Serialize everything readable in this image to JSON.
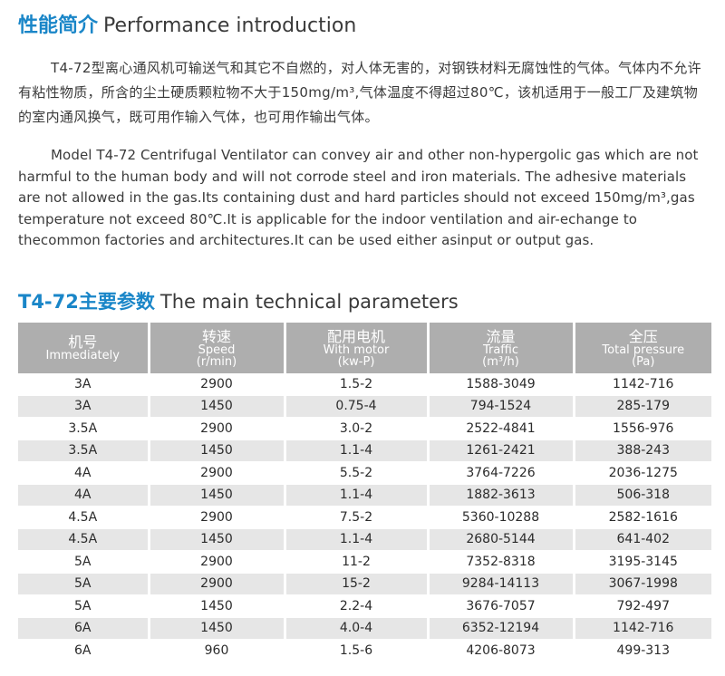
{
  "section1": {
    "title_cn": "性能简介",
    "title_en": "Performance introduction"
  },
  "intro_cn": "T4-72型离心通风机可输送气和其它不自燃的，对人体无害的，对钢铁材料无腐蚀性的气体。气体内不允许有粘性物质，所含的尘土硬质颗粒物不大于150mg/m³,气体温度不得超过80℃，该机适用于一般工厂及建筑物的室内通风换气，既可用作输入气体，也可用作输出气体。",
  "intro_en": "Model T4-72 Centrifugal Ventilator can convey air and other non-hypergolic gas which are not harmful to the human body and will not corrode steel and iron materials. The adhesive materials are not allowed in the gas.Its containing dust and hard particles should not exceed 150mg/m³,gas temperature not exceed 80℃.It is applicable for the indoor ventilation and air-echange to thecommon factories and architectures.It can be used either asinput or output gas.",
  "section2": {
    "title_cn": "T4-72主要参数",
    "title_en": "The main technical parameters"
  },
  "table": {
    "headers": [
      {
        "cn": "机号",
        "en1": "Immediately",
        "en2": ""
      },
      {
        "cn": "转速",
        "en1": "Speed",
        "en2": "(r/min)"
      },
      {
        "cn": "配用电机",
        "en1": "With motor",
        "en2": "(kw-P)"
      },
      {
        "cn": "流量",
        "en1": "Traffic",
        "en2": "(m³/h)"
      },
      {
        "cn": "全压",
        "en1": "Total pressure",
        "en2": "(Pa)"
      }
    ],
    "rows": [
      [
        "3A",
        "2900",
        "1.5-2",
        "1588-3049",
        "1142-716"
      ],
      [
        "3A",
        "1450",
        "0.75-4",
        "794-1524",
        "285-179"
      ],
      [
        "3.5A",
        "2900",
        "3.0-2",
        "2522-4841",
        "1556-976"
      ],
      [
        "3.5A",
        "1450",
        "1.1-4",
        "1261-2421",
        "388-243"
      ],
      [
        "4A",
        "2900",
        "5.5-2",
        "3764-7226",
        "2036-1275"
      ],
      [
        "4A",
        "1450",
        "1.1-4",
        "1882-3613",
        "506-318"
      ],
      [
        "4.5A",
        "2900",
        "7.5-2",
        "5360-10288",
        "2582-1616"
      ],
      [
        "4.5A",
        "1450",
        "1.1-4",
        "2680-5144",
        "641-402"
      ],
      [
        "5A",
        "2900",
        "11-2",
        "7352-8318",
        "3195-3145"
      ],
      [
        "5A",
        "2900",
        "15-2",
        "9284-14113",
        "3067-1998"
      ],
      [
        "5A",
        "1450",
        "2.2-4",
        "3676-7057",
        "792-497"
      ],
      [
        "6A",
        "1450",
        "4.0-4",
        "6352-12194",
        "1142-716"
      ],
      [
        "6A",
        "960",
        "1.5-6",
        "4206-8073",
        "499-313"
      ]
    ]
  }
}
